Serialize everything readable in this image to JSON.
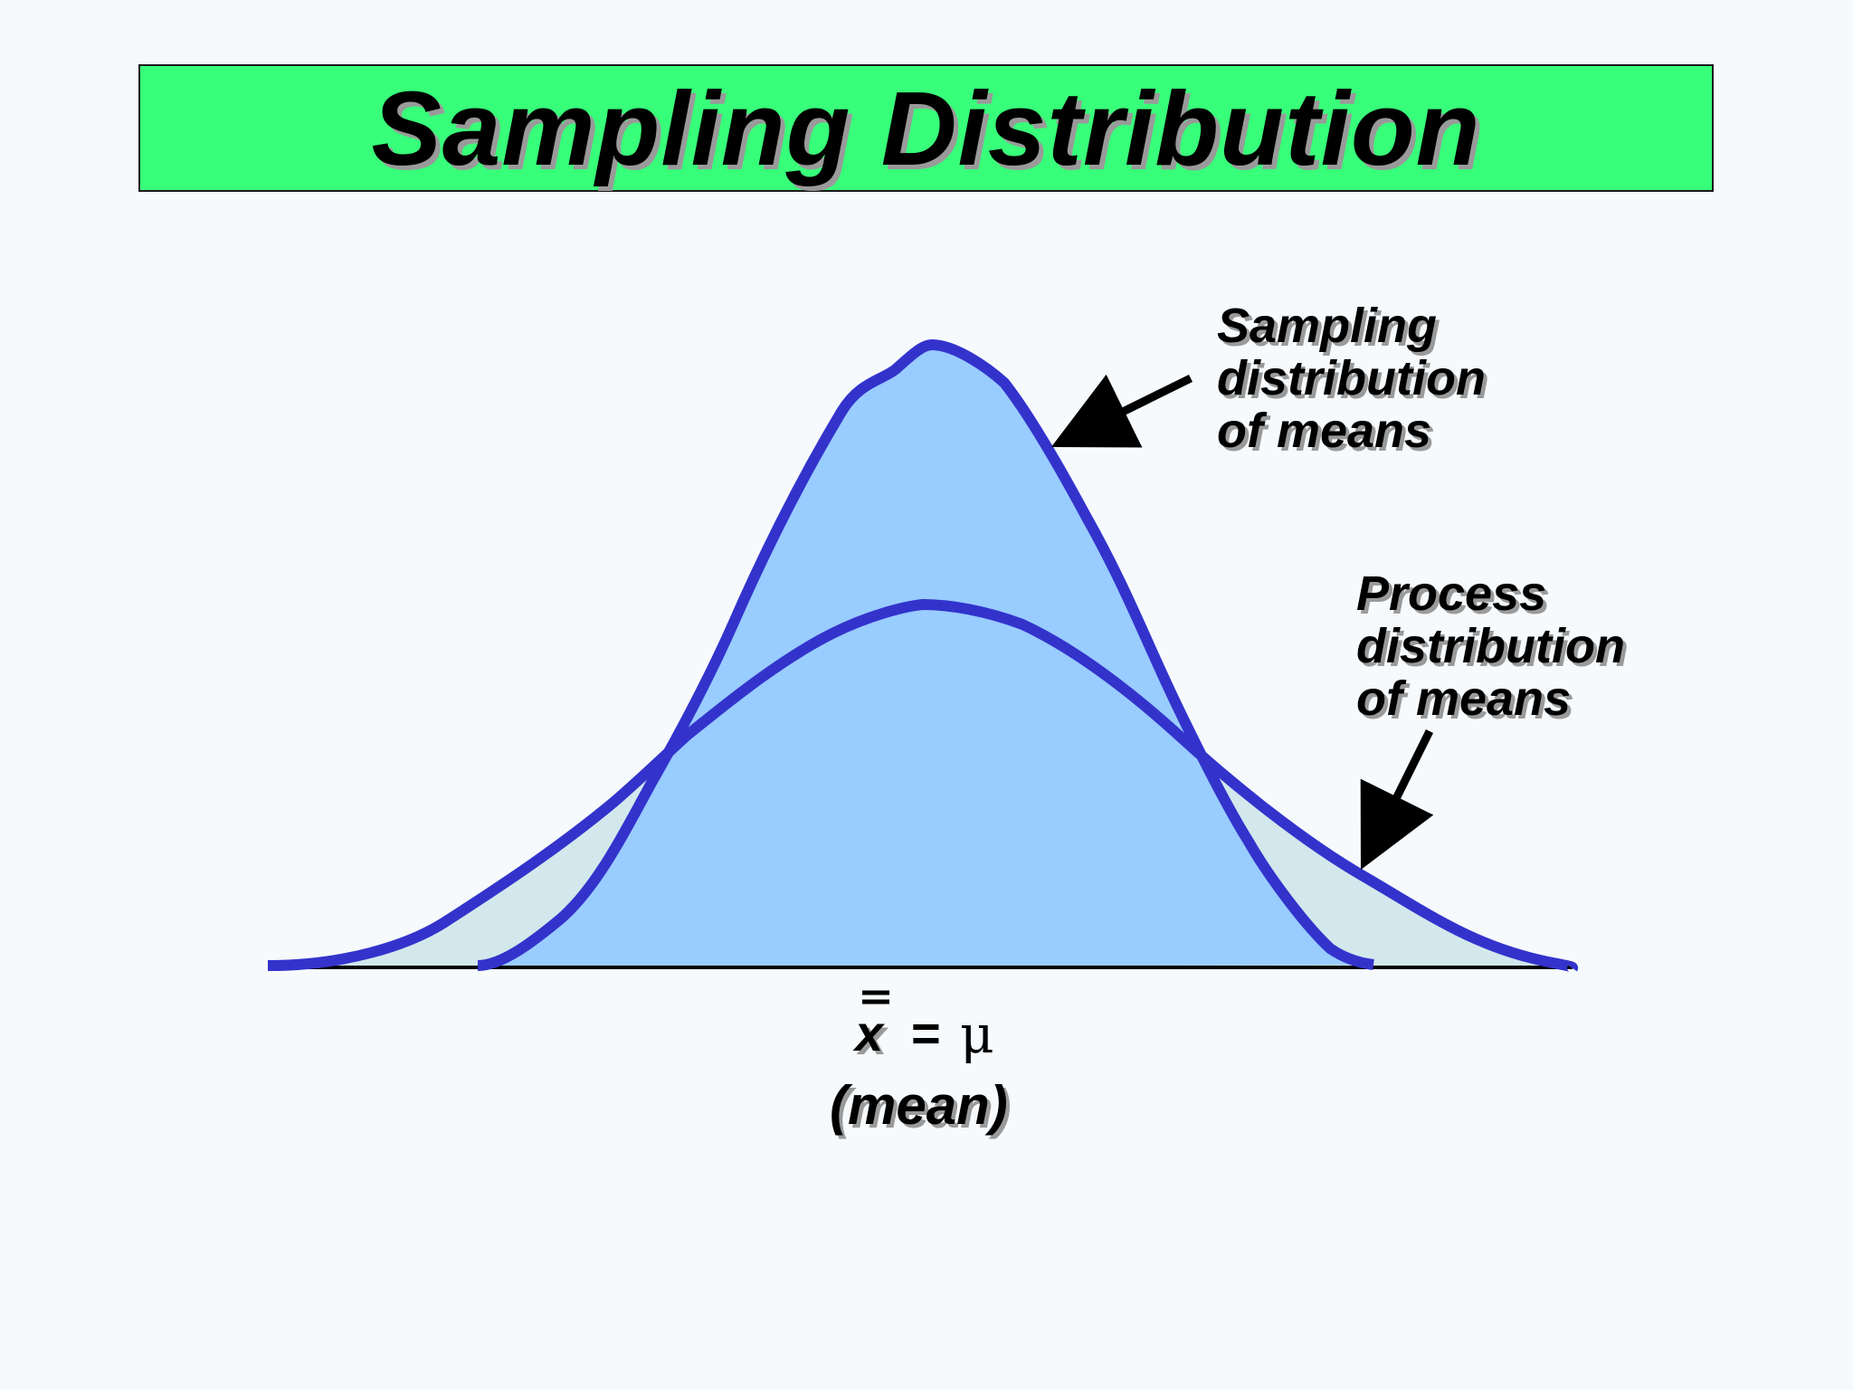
{
  "title": "Sampling Distribution",
  "annotations": {
    "sampling": [
      "Sampling",
      "distribution",
      "of means"
    ],
    "process": [
      "Process",
      "distribution",
      "of means"
    ]
  },
  "mean_label": {
    "xbar": "x",
    "equals": "=",
    "mu": "μ",
    "caption": "(mean)"
  },
  "colors": {
    "title_background": "#38ff7a",
    "curve_stroke": "#3333cc",
    "sampling_fill": "#99ccff",
    "process_fill": "#d2e8ec",
    "background": "#f6fafd"
  }
}
